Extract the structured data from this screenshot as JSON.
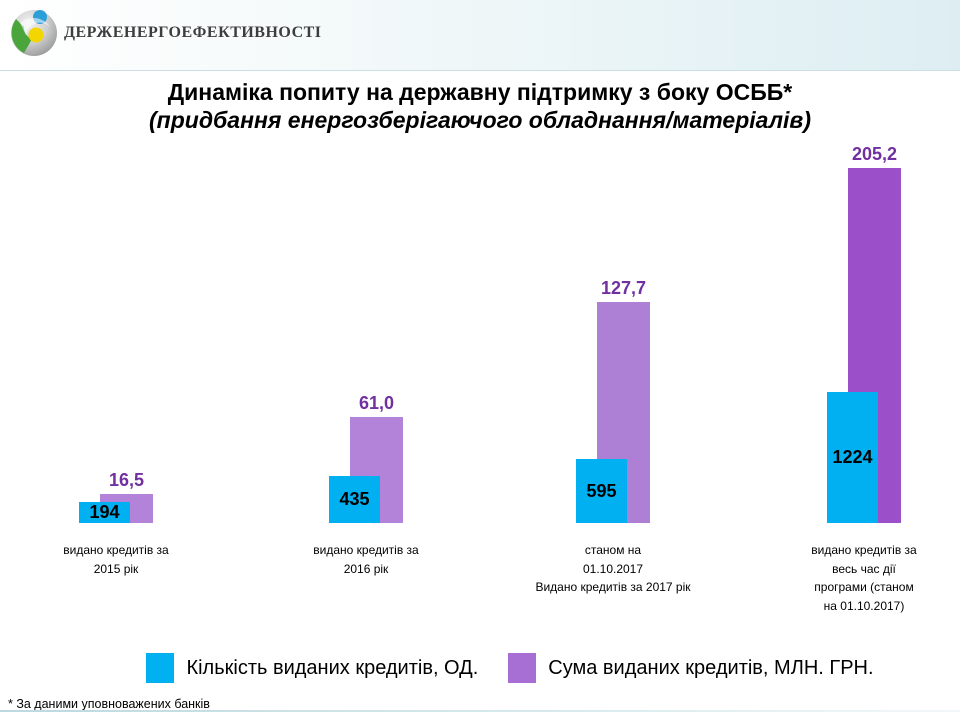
{
  "header": {
    "agency": "Держенергоефективності",
    "logo_icon": "energy-sphere-logo"
  },
  "chart_data": {
    "type": "bar",
    "title": "Динаміка попиту на державну підтримку з боку ОСББ*",
    "subtitle": "(придбання енергозберігаючого обладнання/матеріалів)",
    "categories": [
      "видано кредитів за\n2015 рік",
      "видано кредитів за\n2016 рік",
      "станом на\n01.10.2017\nВидано кредитів за 2017 рік",
      "видано кредитів за\nвесь час дії\nпрограми (станом\nна 01.10.2017)"
    ],
    "series": [
      {
        "name": "Кількість виданих кредитів, ОД.",
        "values": [
          194,
          435,
          595,
          1224
        ],
        "value_labels": [
          "194",
          "435",
          "595",
          "1224"
        ],
        "color": "#00b0f0",
        "label_color": "#000000"
      },
      {
        "name": "Сума виданих кредитів, МЛН. ГРН.",
        "values": [
          16.5,
          61.0,
          127.7,
          205.2
        ],
        "value_labels": [
          "16,5",
          "61,0",
          "127,7",
          "205,2"
        ],
        "color": "#a76fd4",
        "bar_colors": [
          "#b283d9",
          "#b283d9",
          "#ad80d6",
          "#9b50c9"
        ],
        "label_color": "#7030a0"
      }
    ],
    "axes_visible": false,
    "grid": false,
    "legend_position": "bottom",
    "footnote": "* За даними уповноважених банків"
  }
}
